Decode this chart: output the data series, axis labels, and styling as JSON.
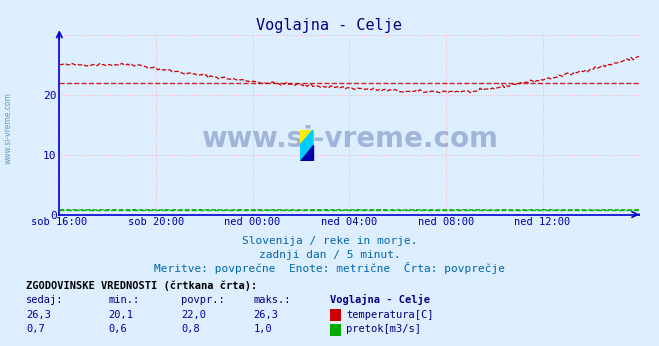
{
  "title": "Voglajna - Celje",
  "title_color": "#000080",
  "bg_color": "#ddeeff",
  "plot_bg_color": "#ddeeff",
  "grid_color": "#ffaaaa",
  "x_labels": [
    "sob 16:00",
    "sob 20:00",
    "ned 00:00",
    "ned 04:00",
    "ned 08:00",
    "ned 12:00"
  ],
  "y_ticks": [
    0,
    10,
    20
  ],
  "y_lim": [
    0,
    30
  ],
  "temp_avg": 22.0,
  "flow_avg": 0.8,
  "temp_color": "#cc0000",
  "flow_color": "#00aa00",
  "spine_color": "#0000cc",
  "subtitle1": "Slovenija / reke in morje.",
  "subtitle2": "zadnji dan / 5 minut.",
  "subtitle3": "Meritve: povprečne  Enote: metrične  Črta: povprečje",
  "legend_title": "ZGODOVINSKE VREDNOSTI (črtkana črta):",
  "legend_headers": [
    "sedaj:",
    "min.:",
    "povpr.:",
    "maks.:",
    "Voglajna - Celje"
  ],
  "legend_row1": [
    "26,3",
    "20,1",
    "22,0",
    "26,3",
    "temperatura[C]"
  ],
  "legend_row2": [
    "0,7",
    "0,6",
    "0,8",
    "1,0",
    "pretok[m3/s]"
  ],
  "watermark": "www.si-vreme.com",
  "watermark_color": "#1a3080",
  "axis_label_color": "#0000aa",
  "text_color": "#0066aa",
  "side_label_color": "#6699bb",
  "figwidth": 6.59,
  "figheight": 3.46,
  "dpi": 100
}
